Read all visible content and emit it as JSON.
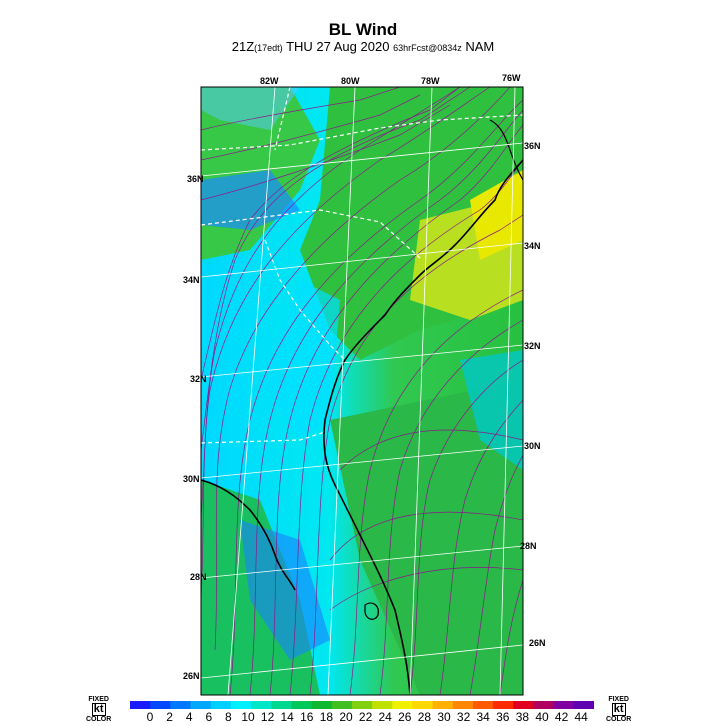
{
  "header": {
    "title": "BL Wind",
    "subtitle_time": "21Z",
    "subtitle_local": "(17edt)",
    "subtitle_date": "THU 27 Aug 2020",
    "subtitle_fcst": "63hrFcst@0834z",
    "subtitle_model": "NAM"
  },
  "map": {
    "lon_labels": [
      "82W",
      "80W",
      "78W",
      "76W"
    ],
    "lat_labels_left": [
      "36N",
      "34N",
      "32N",
      "30N",
      "28N",
      "26N"
    ],
    "lat_labels_right": [
      "36N",
      "34N",
      "32N",
      "30N",
      "28N",
      "26N"
    ],
    "colors": {
      "calm": "#1a3cff",
      "light": "#00e5ff",
      "moderate": "#22c23a",
      "strong": "#e8e800",
      "streamline": "#8a1a8a"
    }
  },
  "colorbar": {
    "left_label": [
      "FIXED",
      "kt",
      "COLOR"
    ],
    "right_label": [
      "FIXED",
      "kt",
      "COLOR"
    ],
    "ticks": [
      "0",
      "2",
      "4",
      "6",
      "8",
      "10",
      "12",
      "14",
      "16",
      "18",
      "20",
      "22",
      "24",
      "26",
      "28",
      "30",
      "32",
      "34",
      "36",
      "38",
      "40",
      "42",
      "44"
    ],
    "colors": [
      "#1a1aff",
      "#0048ff",
      "#0078ff",
      "#00a8ff",
      "#00d0ff",
      "#00f0ff",
      "#00e6c8",
      "#00d890",
      "#00c85a",
      "#10b830",
      "#40c020",
      "#80d010",
      "#c0e000",
      "#f0f000",
      "#ffd800",
      "#ffb000",
      "#ff8800",
      "#ff5a00",
      "#ff2a00",
      "#e00020",
      "#b00060",
      "#8000a0",
      "#6000b0"
    ]
  }
}
